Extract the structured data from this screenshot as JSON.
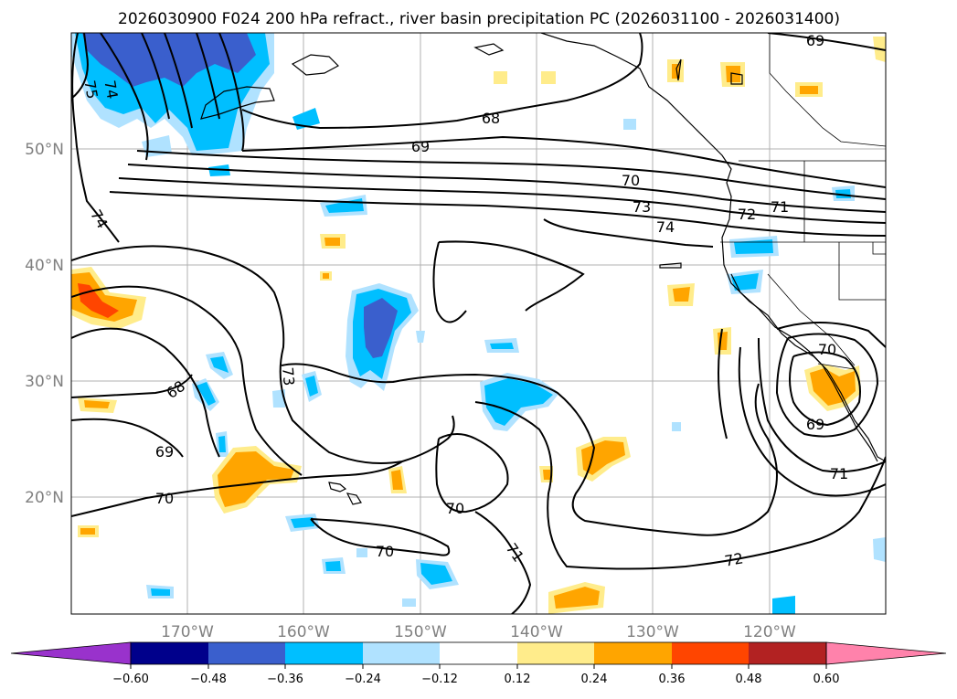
{
  "title": "2026030900 F024 200 hPa refract., river basin precipitation PC (2026031100 - 2026031400)",
  "colors": {
    "neg_060_plus": "#9932cc",
    "neg_048_060": "#00008b",
    "neg_036_048": "#3a5fcd",
    "neg_024_036": "#00bfff",
    "neg_012_024": "#b0e2ff",
    "neutral": "#ffffff",
    "pos_012_024": "#ffec8b",
    "pos_024_036": "#ffa500",
    "pos_036_048": "#ff4500",
    "pos_048_060": "#b22222",
    "pos_060_plus": "#ff82ab"
  },
  "axes": {
    "lat_labels": [
      "50°N",
      "40°N",
      "30°N",
      "20°N"
    ],
    "lon_labels": [
      "170°W",
      "160°W",
      "150°W",
      "140°W",
      "130°W",
      "120°W"
    ]
  },
  "colorbar": {
    "ticks": [
      "−0.60",
      "−0.48",
      "−0.36",
      "−0.24",
      "−0.12",
      "0.12",
      "0.24",
      "0.36",
      "0.48",
      "0.60"
    ]
  },
  "contour_labels": [
    "69",
    "68",
    "69",
    "70",
    "73",
    "74",
    "72",
    "71",
    "75",
    "74",
    "74",
    "68",
    "73",
    "69",
    "70",
    "70",
    "70",
    "71",
    "72",
    "70",
    "69",
    "71"
  ]
}
